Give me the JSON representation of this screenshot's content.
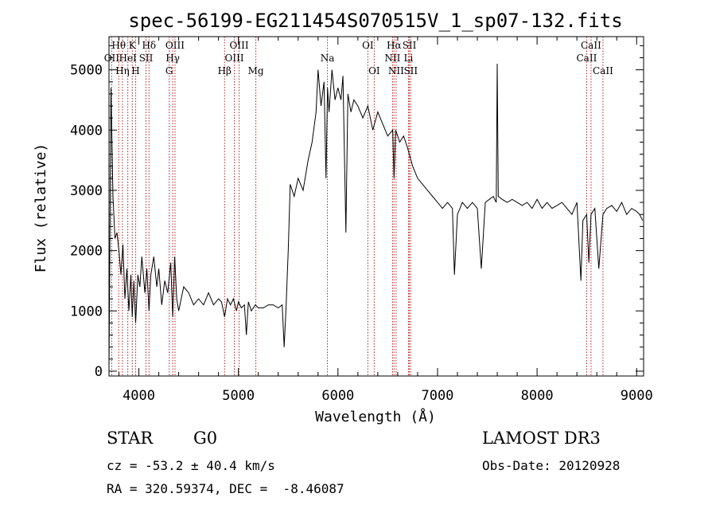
{
  "chart_data": {
    "type": "line",
    "title": "spec-56199-EG211454S070515V_1_sp07-132.fits",
    "xlabel": "Wavelength (Å)",
    "ylabel": "Flux (relative)",
    "xlim": [
      3700,
      9070
    ],
    "ylim": [
      -80,
      5550
    ],
    "x_ticks": [
      4000,
      5000,
      6000,
      7000,
      8000,
      9000
    ],
    "y_ticks": [
      0,
      1000,
      2000,
      3000,
      4000,
      5000
    ],
    "grid": false,
    "series": [
      {
        "color": "#000000",
        "x": [
          3700,
          3720,
          3740,
          3760,
          3780,
          3800,
          3820,
          3840,
          3860,
          3880,
          3900,
          3920,
          3933,
          3950,
          3968,
          3990,
          4010,
          4030,
          4060,
          4080,
          4102,
          4120,
          4150,
          4180,
          4200,
          4230,
          4260,
          4290,
          4320,
          4340,
          4360,
          4380,
          4400,
          4450,
          4500,
          4550,
          4600,
          4650,
          4700,
          4750,
          4800,
          4830,
          4861,
          4890,
          4920,
          4950,
          4980,
          5000,
          5030,
          5060,
          5080,
          5100,
          5130,
          5170,
          5200,
          5250,
          5300,
          5350,
          5400,
          5440,
          5460,
          5480,
          5500,
          5520,
          5560,
          5600,
          5650,
          5700,
          5740,
          5780,
          5800,
          5830,
          5860,
          5880,
          5895,
          5910,
          5940,
          5970,
          6000,
          6030,
          6050,
          6080,
          6100,
          6130,
          6160,
          6200,
          6250,
          6300,
          6350,
          6400,
          6450,
          6500,
          6550,
          6563,
          6580,
          6620,
          6660,
          6700,
          6750,
          6800,
          6850,
          6900,
          6950,
          7000,
          7050,
          7100,
          7150,
          7170,
          7200,
          7250,
          7300,
          7350,
          7400,
          7440,
          7480,
          7520,
          7560,
          7590,
          7600,
          7610,
          7650,
          7700,
          7750,
          7800,
          7850,
          7900,
          7950,
          8000,
          8050,
          8100,
          8150,
          8200,
          8250,
          8300,
          8350,
          8400,
          8440,
          8460,
          8498,
          8520,
          8542,
          8580,
          8620,
          8662,
          8700,
          8750,
          8800,
          8850,
          8900,
          8950,
          9000,
          9030,
          9060
        ],
        "y": [
          0,
          4700,
          2900,
          2200,
          2300,
          2000,
          1600,
          2100,
          1200,
          1700,
          1000,
          1600,
          900,
          1500,
          800,
          1600,
          1400,
          1900,
          1300,
          1700,
          1000,
          1600,
          1900,
          1400,
          1700,
          1100,
          1500,
          1300,
          1800,
          900,
          1900,
          1200,
          1000,
          1400,
          1300,
          1100,
          1200,
          1100,
          1300,
          1100,
          1200,
          1150,
          900,
          1200,
          1100,
          1200,
          1000,
          1150,
          1050,
          1100,
          600,
          1150,
          1000,
          1100,
          1050,
          1050,
          1100,
          1100,
          1050,
          1100,
          400,
          1100,
          2000,
          3100,
          2900,
          3200,
          3000,
          3500,
          3800,
          4300,
          5000,
          4400,
          4800,
          3200,
          4700,
          4300,
          5000,
          4500,
          4700,
          4500,
          4900,
          2300,
          4600,
          4300,
          4500,
          4400,
          4200,
          4400,
          4000,
          4300,
          4100,
          3900,
          4000,
          3200,
          4000,
          3800,
          3900,
          3700,
          3400,
          3200,
          3100,
          3000,
          2900,
          2800,
          2700,
          2800,
          2700,
          1600,
          2600,
          2800,
          2700,
          2800,
          2700,
          1700,
          2800,
          2850,
          2900,
          2800,
          5100,
          2900,
          2850,
          2800,
          2850,
          2800,
          2750,
          2800,
          2700,
          2850,
          2700,
          2800,
          2700,
          2750,
          2800,
          2700,
          2600,
          2800,
          1500,
          2500,
          2600,
          1800,
          2600,
          2700,
          1700,
          2600,
          2700,
          2750,
          2650,
          2800,
          2600,
          2700,
          2650,
          2600,
          2500
        ]
      }
    ],
    "spectral_lines": [
      {
        "name": "OII",
        "wavelength": 3727,
        "row": 1
      },
      {
        "name": "Hθ",
        "wavelength": 3798,
        "row": 0
      },
      {
        "name": "Hη",
        "wavelength": 3835,
        "row": 2
      },
      {
        "name": "HeI",
        "wavelength": 3889,
        "row": 1
      },
      {
        "name": "K",
        "wavelength": 3934,
        "row": 0
      },
      {
        "name": "H",
        "wavelength": 3968,
        "row": 2
      },
      {
        "name": "SII",
        "wavelength": 4072,
        "row": 1
      },
      {
        "name": "Hδ",
        "wavelength": 4102,
        "row": 0
      },
      {
        "name": "G",
        "wavelength": 4305,
        "row": 2
      },
      {
        "name": "Hγ",
        "wavelength": 4340,
        "row": 1
      },
      {
        "name": "OIII",
        "wavelength": 4363,
        "row": 0
      },
      {
        "name": "Hβ",
        "wavelength": 4861,
        "row": 2
      },
      {
        "name": "OIII",
        "wavelength": 4959,
        "row": 1
      },
      {
        "name": "OIII",
        "wavelength": 5007,
        "row": 0
      },
      {
        "name": "Mg",
        "wavelength": 5175,
        "row": 2
      },
      {
        "name": "Na",
        "wavelength": 5894,
        "row": 1
      },
      {
        "name": "OI",
        "wavelength": 6300,
        "row": 0
      },
      {
        "name": "OI",
        "wavelength": 6364,
        "row": 2
      },
      {
        "name": "NII",
        "wavelength": 6548,
        "row": 1
      },
      {
        "name": "Hα",
        "wavelength": 6563,
        "row": 0
      },
      {
        "name": "NII",
        "wavelength": 6584,
        "row": 2
      },
      {
        "name": "SII",
        "wavelength": 6717,
        "row": 0
      },
      {
        "name": "Li",
        "wavelength": 6708,
        "row": 1
      },
      {
        "name": "SII",
        "wavelength": 6731,
        "row": 2
      },
      {
        "name": "CaII",
        "wavelength": 8498,
        "row": 1
      },
      {
        "name": "CaII",
        "wavelength": 8542,
        "row": 0
      },
      {
        "name": "CaII",
        "wavelength": 8662,
        "row": 2
      }
    ],
    "line_marker_color": "#b22222"
  },
  "info": {
    "object_class": "STAR",
    "subclass": "G0",
    "survey": "LAMOST DR3",
    "cz": "cz = -53.2 ± 40.4 km/s",
    "obs_date": "Obs-Date: 20120928",
    "coords": "RA = 320.59374, DEC =  -8.46087"
  }
}
